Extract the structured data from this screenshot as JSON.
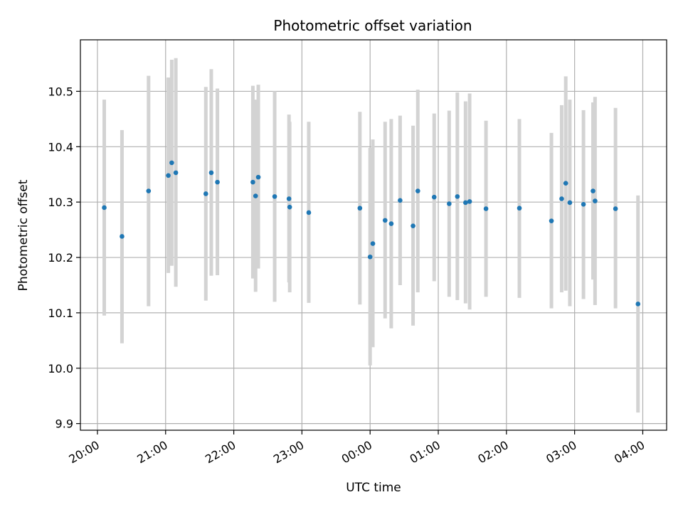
{
  "chart_data": {
    "type": "scatter",
    "title": "Photometric offset variation",
    "xlabel": "UTC time",
    "ylabel": "Photometric offset",
    "x_unit": "hours (UTC, 20:00 → 04:00, values past 24 denote next day)",
    "xlim": [
      19.75,
      28.35
    ],
    "ylim": [
      9.888,
      10.593
    ],
    "grid": true,
    "x_ticks": [
      {
        "value": 20,
        "label": "20:00"
      },
      {
        "value": 21,
        "label": "21:00"
      },
      {
        "value": 22,
        "label": "22:00"
      },
      {
        "value": 23,
        "label": "23:00"
      },
      {
        "value": 24,
        "label": "00:00"
      },
      {
        "value": 25,
        "label": "01:00"
      },
      {
        "value": 26,
        "label": "02:00"
      },
      {
        "value": 27,
        "label": "03:00"
      },
      {
        "value": 28,
        "label": "04:00"
      }
    ],
    "y_ticks": [
      {
        "value": 9.9,
        "label": "9.9"
      },
      {
        "value": 10.0,
        "label": "10.0"
      },
      {
        "value": 10.1,
        "label": "10.1"
      },
      {
        "value": 10.2,
        "label": "10.2"
      },
      {
        "value": 10.3,
        "label": "10.3"
      },
      {
        "value": 10.4,
        "label": "10.4"
      },
      {
        "value": 10.5,
        "label": "10.5"
      }
    ],
    "point_color": "#1f77b4",
    "errorbar_color": "#d3d3d3",
    "points": [
      {
        "x": 20.1,
        "y": 10.29,
        "lo": 10.095,
        "hi": 10.485
      },
      {
        "x": 20.36,
        "y": 10.238,
        "lo": 10.045,
        "hi": 10.43
      },
      {
        "x": 20.75,
        "y": 10.32,
        "lo": 10.112,
        "hi": 10.528
      },
      {
        "x": 21.04,
        "y": 10.348,
        "lo": 10.172,
        "hi": 10.525
      },
      {
        "x": 21.09,
        "y": 10.371,
        "lo": 10.185,
        "hi": 10.557
      },
      {
        "x": 21.15,
        "y": 10.353,
        "lo": 10.147,
        "hi": 10.56
      },
      {
        "x": 21.59,
        "y": 10.315,
        "lo": 10.122,
        "hi": 10.508
      },
      {
        "x": 21.67,
        "y": 10.353,
        "lo": 10.167,
        "hi": 10.54
      },
      {
        "x": 21.76,
        "y": 10.336,
        "lo": 10.168,
        "hi": 10.505
      },
      {
        "x": 22.28,
        "y": 10.336,
        "lo": 10.162,
        "hi": 10.51
      },
      {
        "x": 22.32,
        "y": 10.311,
        "lo": 10.138,
        "hi": 10.485
      },
      {
        "x": 22.36,
        "y": 10.345,
        "lo": 10.18,
        "hi": 10.512
      },
      {
        "x": 22.6,
        "y": 10.31,
        "lo": 10.12,
        "hi": 10.5
      },
      {
        "x": 22.81,
        "y": 10.306,
        "lo": 10.155,
        "hi": 10.458
      },
      {
        "x": 22.82,
        "y": 10.291,
        "lo": 10.137,
        "hi": 10.445
      },
      {
        "x": 23.1,
        "y": 10.281,
        "lo": 10.118,
        "hi": 10.445
      },
      {
        "x": 23.85,
        "y": 10.289,
        "lo": 10.115,
        "hi": 10.463
      },
      {
        "x": 24.0,
        "y": 10.201,
        "lo": 10.005,
        "hi": 10.398
      },
      {
        "x": 24.04,
        "y": 10.225,
        "lo": 10.038,
        "hi": 10.413
      },
      {
        "x": 24.22,
        "y": 10.267,
        "lo": 10.09,
        "hi": 10.445
      },
      {
        "x": 24.31,
        "y": 10.261,
        "lo": 10.072,
        "hi": 10.45
      },
      {
        "x": 24.44,
        "y": 10.303,
        "lo": 10.15,
        "hi": 10.456
      },
      {
        "x": 24.63,
        "y": 10.257,
        "lo": 10.077,
        "hi": 10.438
      },
      {
        "x": 24.7,
        "y": 10.32,
        "lo": 10.137,
        "hi": 10.503
      },
      {
        "x": 24.94,
        "y": 10.309,
        "lo": 10.157,
        "hi": 10.46
      },
      {
        "x": 25.16,
        "y": 10.297,
        "lo": 10.129,
        "hi": 10.465
      },
      {
        "x": 25.28,
        "y": 10.31,
        "lo": 10.123,
        "hi": 10.498
      },
      {
        "x": 25.4,
        "y": 10.299,
        "lo": 10.117,
        "hi": 10.482
      },
      {
        "x": 25.46,
        "y": 10.301,
        "lo": 10.106,
        "hi": 10.496
      },
      {
        "x": 25.7,
        "y": 10.288,
        "lo": 10.129,
        "hi": 10.447
      },
      {
        "x": 26.19,
        "y": 10.289,
        "lo": 10.127,
        "hi": 10.45
      },
      {
        "x": 26.66,
        "y": 10.266,
        "lo": 10.108,
        "hi": 10.425
      },
      {
        "x": 26.81,
        "y": 10.306,
        "lo": 10.137,
        "hi": 10.475
      },
      {
        "x": 26.87,
        "y": 10.334,
        "lo": 10.14,
        "hi": 10.527
      },
      {
        "x": 26.93,
        "y": 10.299,
        "lo": 10.112,
        "hi": 10.485
      },
      {
        "x": 27.13,
        "y": 10.296,
        "lo": 10.125,
        "hi": 10.466
      },
      {
        "x": 27.27,
        "y": 10.32,
        "lo": 10.16,
        "hi": 10.48
      },
      {
        "x": 27.3,
        "y": 10.302,
        "lo": 10.114,
        "hi": 10.49
      },
      {
        "x": 27.6,
        "y": 10.288,
        "lo": 10.108,
        "hi": 10.47
      },
      {
        "x": 27.93,
        "y": 10.116,
        "lo": 9.92,
        "hi": 10.312
      }
    ]
  }
}
